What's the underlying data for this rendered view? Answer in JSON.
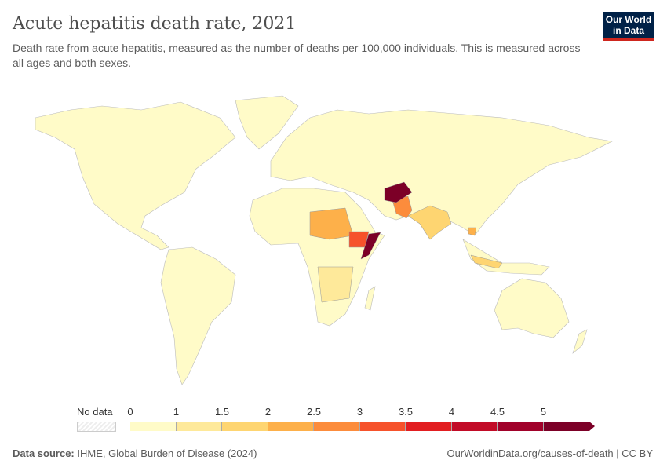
{
  "header": {
    "title": "Acute hepatitis death rate, 2021",
    "subtitle": "Death rate from acute hepatitis, measured as the number of deaths per 100,000 individuals. This is measured across all ages and both sexes.",
    "logo_line1": "Our World",
    "logo_line2": "in Data"
  },
  "legend": {
    "no_data_label": "No data",
    "ticks": [
      "0",
      "1",
      "1.5",
      "2",
      "2.5",
      "3",
      "3.5",
      "4",
      "4.5",
      "5"
    ],
    "colors": [
      "#fffbc8",
      "#fee99a",
      "#fed571",
      "#fdb04a",
      "#fc8c3c",
      "#f6522b",
      "#e21e21",
      "#c20b27",
      "#a1012a",
      "#7c0027"
    ],
    "no_data_color": "#eeeeee"
  },
  "footer": {
    "source_label": "Data source:",
    "source": "IHME, Global Burden of Disease (2024)",
    "url": "OurWorldinData.org/causes-of-death | CC BY"
  }
}
